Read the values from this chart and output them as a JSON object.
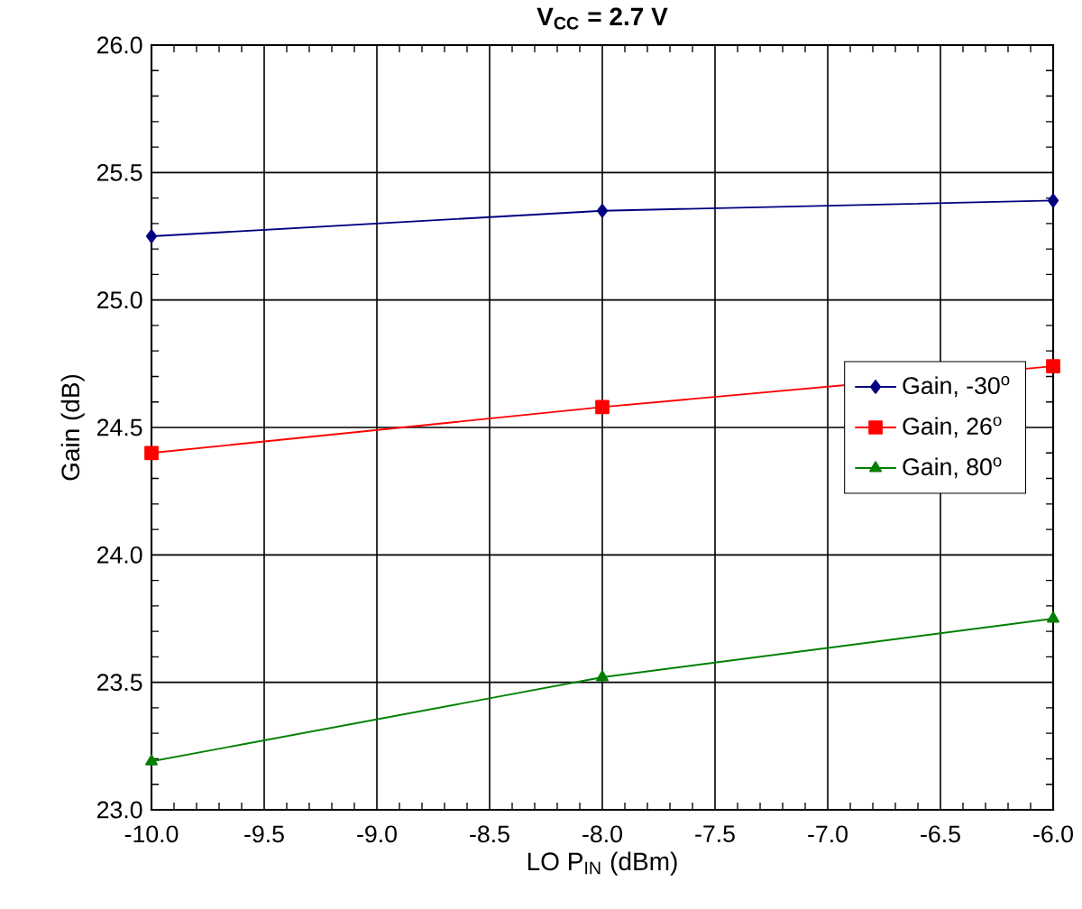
{
  "chart_data": {
    "type": "line",
    "title": "**V$_{CC}$ = 2.7 V**",
    "xlabel": "LO P$_{IN}$ (dBm)",
    "ylabel": "Gain (dB)",
    "x": [
      -10,
      -8,
      -6
    ],
    "xlim": [
      -10,
      -6
    ],
    "ylim": [
      23,
      26
    ],
    "xticks": [
      {
        "value": -10,
        "label": "-10.0"
      },
      {
        "value": -9.5,
        "label": "-9.5"
      },
      {
        "value": -9,
        "label": "-9.0"
      },
      {
        "value": -8.5,
        "label": "-8.5"
      },
      {
        "value": -8,
        "label": "-8.0"
      },
      {
        "value": -7.5,
        "label": "-7.5"
      },
      {
        "value": -7,
        "label": "-7.0"
      },
      {
        "value": -6.5,
        "label": "-6.5"
      },
      {
        "value": -6,
        "label": "-6.0"
      }
    ],
    "yticks": [
      {
        "value": 23,
        "label": "23.0"
      },
      {
        "value": 23.5,
        "label": "23.5"
      },
      {
        "value": 24,
        "label": "24.0"
      },
      {
        "value": 24.5,
        "label": "24.5"
      },
      {
        "value": 25,
        "label": "25.0"
      },
      {
        "value": 25.5,
        "label": "25.5"
      },
      {
        "value": 26,
        "label": "26.0"
      }
    ],
    "grid": true,
    "legend": "right",
    "line_style": "solid",
    "series": [
      {
        "name": "Gain, -30$^{o}$",
        "color": "#000080",
        "marker": "diamond",
        "values": [
          25.25,
          25.35,
          25.39
        ]
      },
      {
        "name": "Gain, 26$^{o}$",
        "color": "#ff0000",
        "marker": "square",
        "values": [
          24.4,
          24.58,
          24.74
        ]
      },
      {
        "name": "Gain, 80$^{o}$",
        "color": "#008000",
        "marker": "triangle",
        "values": [
          23.19,
          23.52,
          23.75
        ]
      }
    ]
  }
}
